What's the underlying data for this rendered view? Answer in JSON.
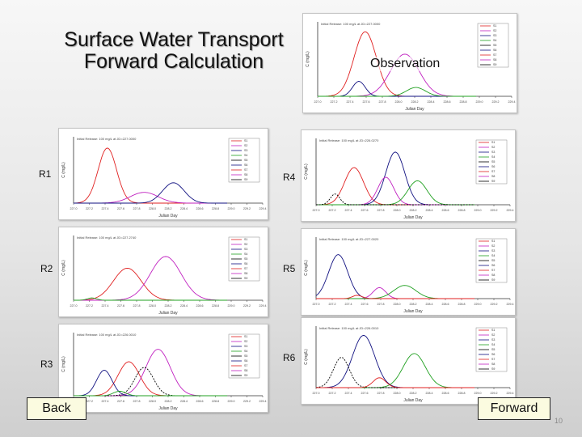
{
  "slide": {
    "title": "Surface Water Transport Forward Calculation",
    "observation_label": "Observation",
    "back_label": "Back",
    "forward_label": "Forward",
    "page_number": "10"
  },
  "panels": [
    {
      "id": "obs",
      "label": "",
      "header": "Initial Release: 100 mg/L at JD=227.0000",
      "xlabel": "Julian Day",
      "ylabel": "C (mg/L)"
    },
    {
      "id": "r1",
      "label": "R1",
      "header": "Initial Release: 100 mg/L at JD=227.0000",
      "xlabel": "Julian Day",
      "ylabel": "C (mg/L)"
    },
    {
      "id": "r2",
      "label": "R2",
      "header": "Initial Release: 100 mg/L at JD=227.2740",
      "xlabel": "Julian Day",
      "ylabel": "C (mg/L)"
    },
    {
      "id": "r3",
      "label": "R3",
      "header": "Initial Release: 100 mg/L at JD=226.0010",
      "xlabel": "Julian Day",
      "ylabel": "C (mg/L)"
    },
    {
      "id": "r4",
      "label": "R4",
      "header": "Initial Release: 100 mg/L at JD=226.0270",
      "xlabel": "Julian Day",
      "ylabel": "C (mg/L)"
    },
    {
      "id": "r5",
      "label": "R5",
      "header": "Initial Release: 100 mg/L at JD=227.0020",
      "xlabel": "Julian Day",
      "ylabel": "C (mg/L)"
    },
    {
      "id": "r6",
      "label": "R6",
      "header": "Initial Release: 100 mg/L at JD=226.0010",
      "xlabel": "Julian Day",
      "ylabel": "C (mg/L)"
    }
  ],
  "legend_entries": [
    "S1",
    "S2",
    "S3",
    "S4",
    "S5",
    "S6",
    "S7",
    "S8",
    "S9"
  ],
  "x_ticks": [
    "227.0",
    "227.2",
    "227.4",
    "227.6",
    "227.8",
    "228.0",
    "228.2",
    "228.4",
    "228.6",
    "228.8",
    "229.0",
    "229.2",
    "229.4"
  ],
  "colors": {
    "red": "#e02020",
    "magenta": "#c020c0",
    "navy": "#101080",
    "green": "#20a020",
    "black": "#000000"
  }
}
